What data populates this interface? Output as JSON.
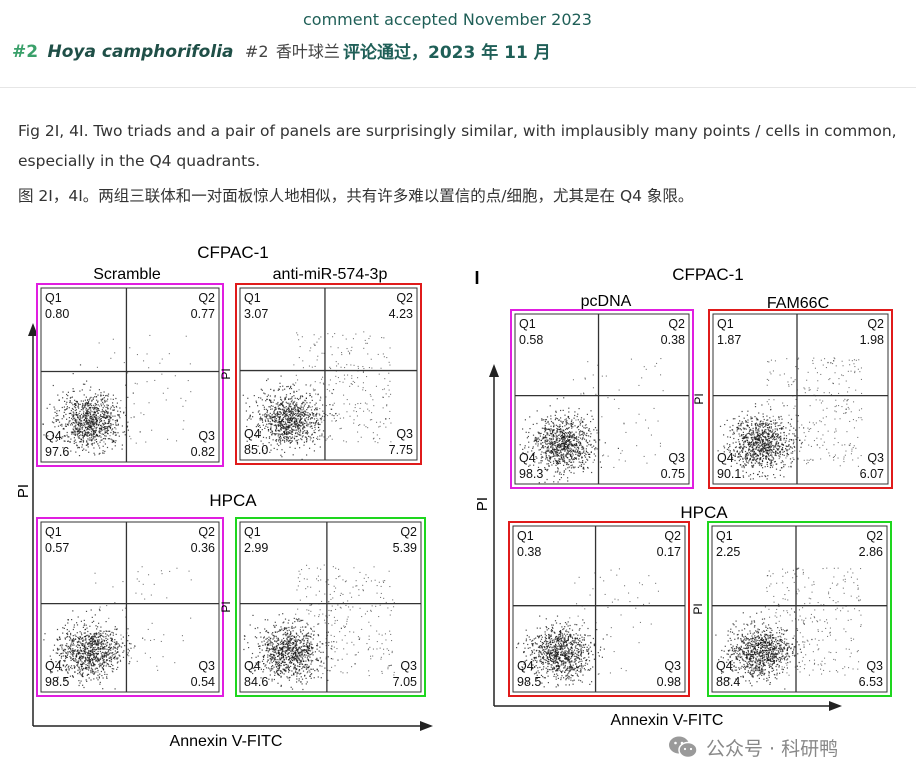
{
  "header": {
    "accepted_en": "comment accepted November 2023",
    "entry_number": "#2",
    "species": "Hoya camphorifolia",
    "entry_number_cn": "#2",
    "species_cn": "香叶球兰",
    "accepted_cn": "评论通过，2023 年 11 月"
  },
  "description": {
    "en": "Fig 2I, 4I. Two triads and a pair of panels are surprisingly similar, with implausibly many points / cells in common, especially in the Q4 quadrants.",
    "cn": "图 2I，4I。两组三联体和一对面板惊人地相似，共有许多难以置信的点/细胞，尤其是在 Q4 象限。"
  },
  "figure_left": {
    "title": "CFPAC-1",
    "left_col_label": "Scramble",
    "right_col_label": "anti-miR-574-3p",
    "row2_title": "HPCA",
    "ylabel": "PI",
    "xlabel": "Annexin V-FITC",
    "panels": [
      {
        "q1": "0.80",
        "q2": "0.77",
        "q3": "0.82",
        "q4": "97.6",
        "box": "#e01ee0"
      },
      {
        "q1": "3.07",
        "q2": "4.23",
        "q3": "7.75",
        "q4": "85.0",
        "box": "#e01b1b"
      },
      {
        "q1": "0.57",
        "q2": "0.36",
        "q3": "0.54",
        "q4": "98.5",
        "box": "#e01ee0"
      },
      {
        "q1": "2.99",
        "q2": "5.39",
        "q3": "7.05",
        "q4": "84.6",
        "box": "#1ed61e"
      }
    ]
  },
  "figure_right": {
    "panel_letter": "I",
    "title": "CFPAC-1",
    "left_col_label": "pcDNA",
    "right_col_label": "FAM66C",
    "row2_title": "HPCA",
    "ylabel": "PI",
    "xlabel": "Annexin V-FITC",
    "panels": [
      {
        "q1": "0.58",
        "q2": "0.38",
        "q3": "0.75",
        "q4": "98.3",
        "box": "#e01ee0"
      },
      {
        "q1": "1.87",
        "q2": "1.98",
        "q3": "6.07",
        "q4": "90.1",
        "box": "#e01b1b"
      },
      {
        "q1": "0.38",
        "q2": "0.17",
        "q3": "0.98",
        "q4": "98.5",
        "box": "#e01b1b"
      },
      {
        "q1": "2.25",
        "q2": "2.86",
        "q3": "6.53",
        "q4": "88.4",
        "box": "#1ed61e"
      }
    ]
  },
  "watermark": {
    "icon": "wechat-icon",
    "text": "公众号 · 科研鸭"
  }
}
